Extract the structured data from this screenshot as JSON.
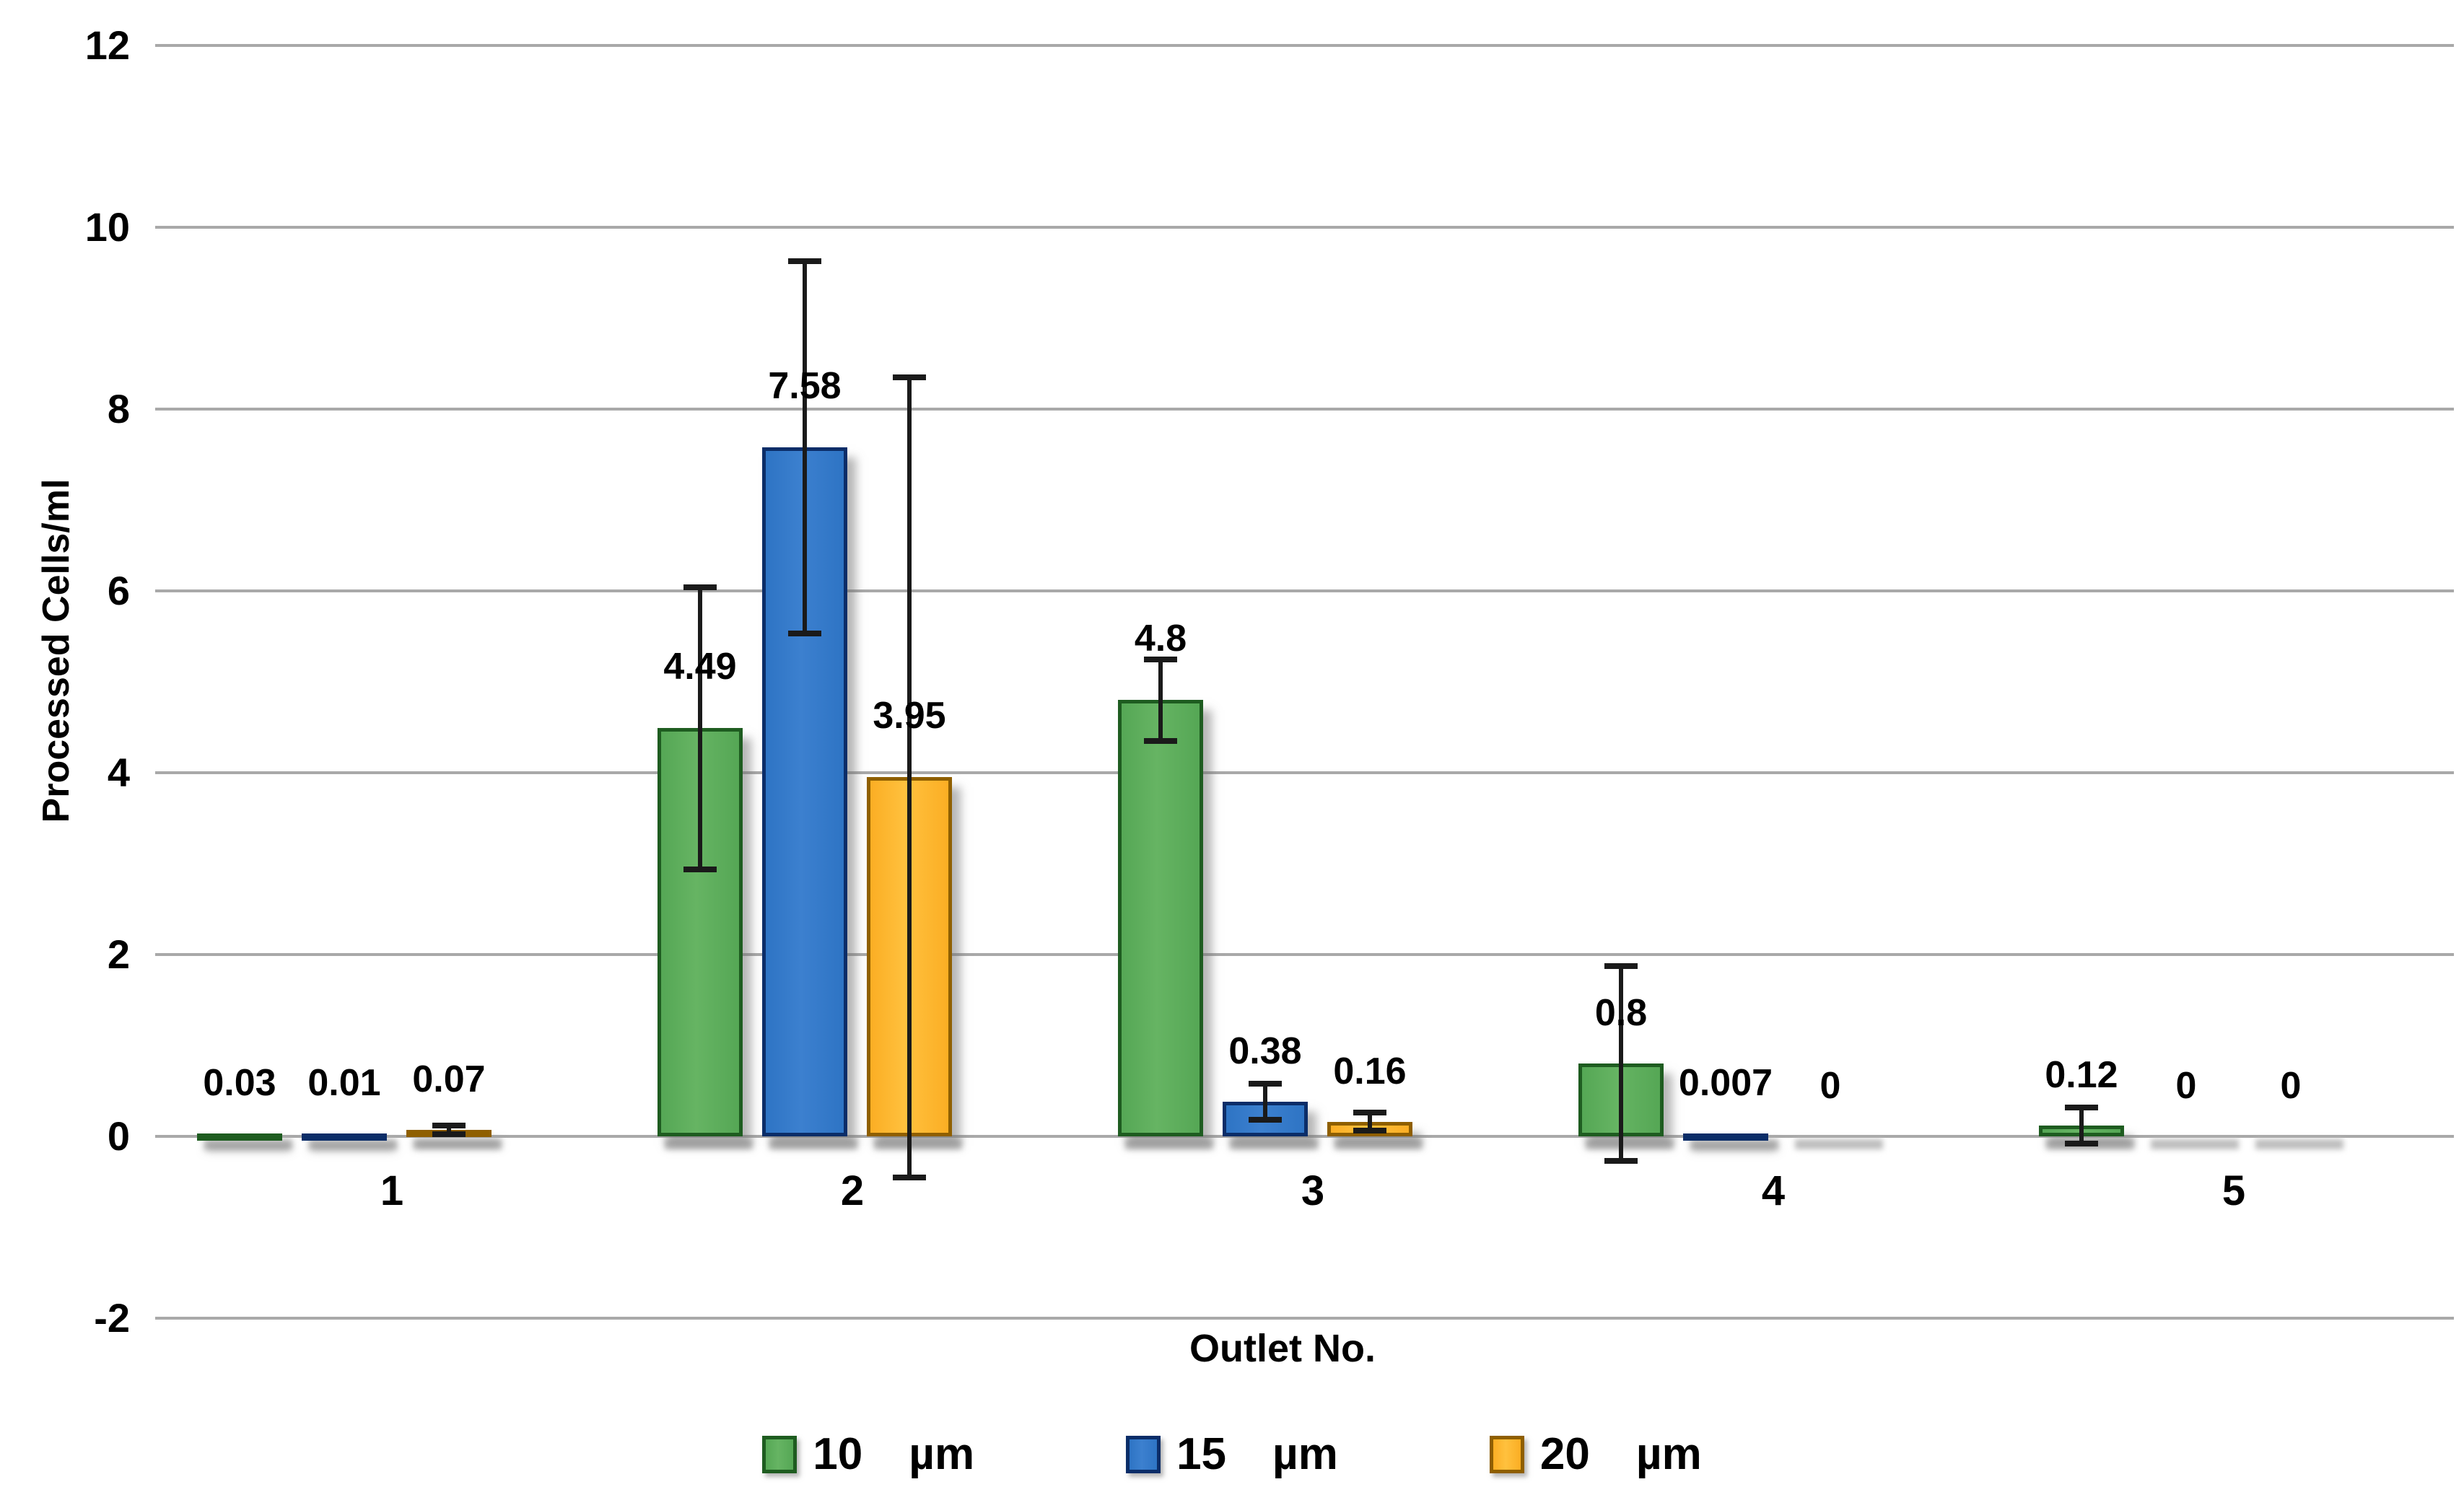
{
  "chart_data": {
    "type": "bar",
    "title": "",
    "xlabel": "Outlet No.",
    "ylabel": "Processed Cells/ml",
    "categories": [
      "1",
      "2",
      "3",
      "4",
      "5"
    ],
    "series": [
      {
        "name": "10 µm",
        "legend_num": "10",
        "legend_unit": "µm",
        "fill": "#55a755",
        "fill_light": "#66b463",
        "border": "#1e5c20",
        "values": [
          0.03,
          4.49,
          4.8,
          0.8,
          0.12
        ],
        "errors": [
          0,
          1.55,
          0.45,
          1.07,
          0.2
        ],
        "labels": [
          "0.03",
          "4.49",
          "4.8",
          "0.8",
          "0.12"
        ]
      },
      {
        "name": "15 µm",
        "legend_num": "15",
        "legend_unit": "µm",
        "fill": "#2e74c4",
        "fill_light": "#3c80cf",
        "border": "#0b2d68",
        "values": [
          0.01,
          7.58,
          0.38,
          0.007,
          0
        ],
        "errors": [
          0,
          2.05,
          0.2,
          0,
          0
        ],
        "labels": [
          "0.01",
          "7.58",
          "0.38",
          "0.007",
          "0"
        ]
      },
      {
        "name": "20 µm",
        "legend_num": "20",
        "legend_unit": "µm",
        "fill": "#fbae24",
        "fill_light": "#ffc13e",
        "border": "#8f5f00",
        "values": [
          0.07,
          3.95,
          0.16,
          0,
          0
        ],
        "errors": [
          0.05,
          4.4,
          0.1,
          0,
          0
        ],
        "labels": [
          "0.07",
          "3.95",
          "0.16",
          "0",
          "0"
        ]
      }
    ],
    "y_ticks": [
      12,
      10,
      8,
      6,
      4,
      2,
      0,
      -2
    ],
    "ylim": [
      -2,
      12
    ],
    "grid": true,
    "legend_position": "bottom"
  },
  "colors": {
    "background": "#ffffff",
    "gridline": "#a9a9a9",
    "error_bar": "#1a1a1a",
    "text": "#000000"
  }
}
